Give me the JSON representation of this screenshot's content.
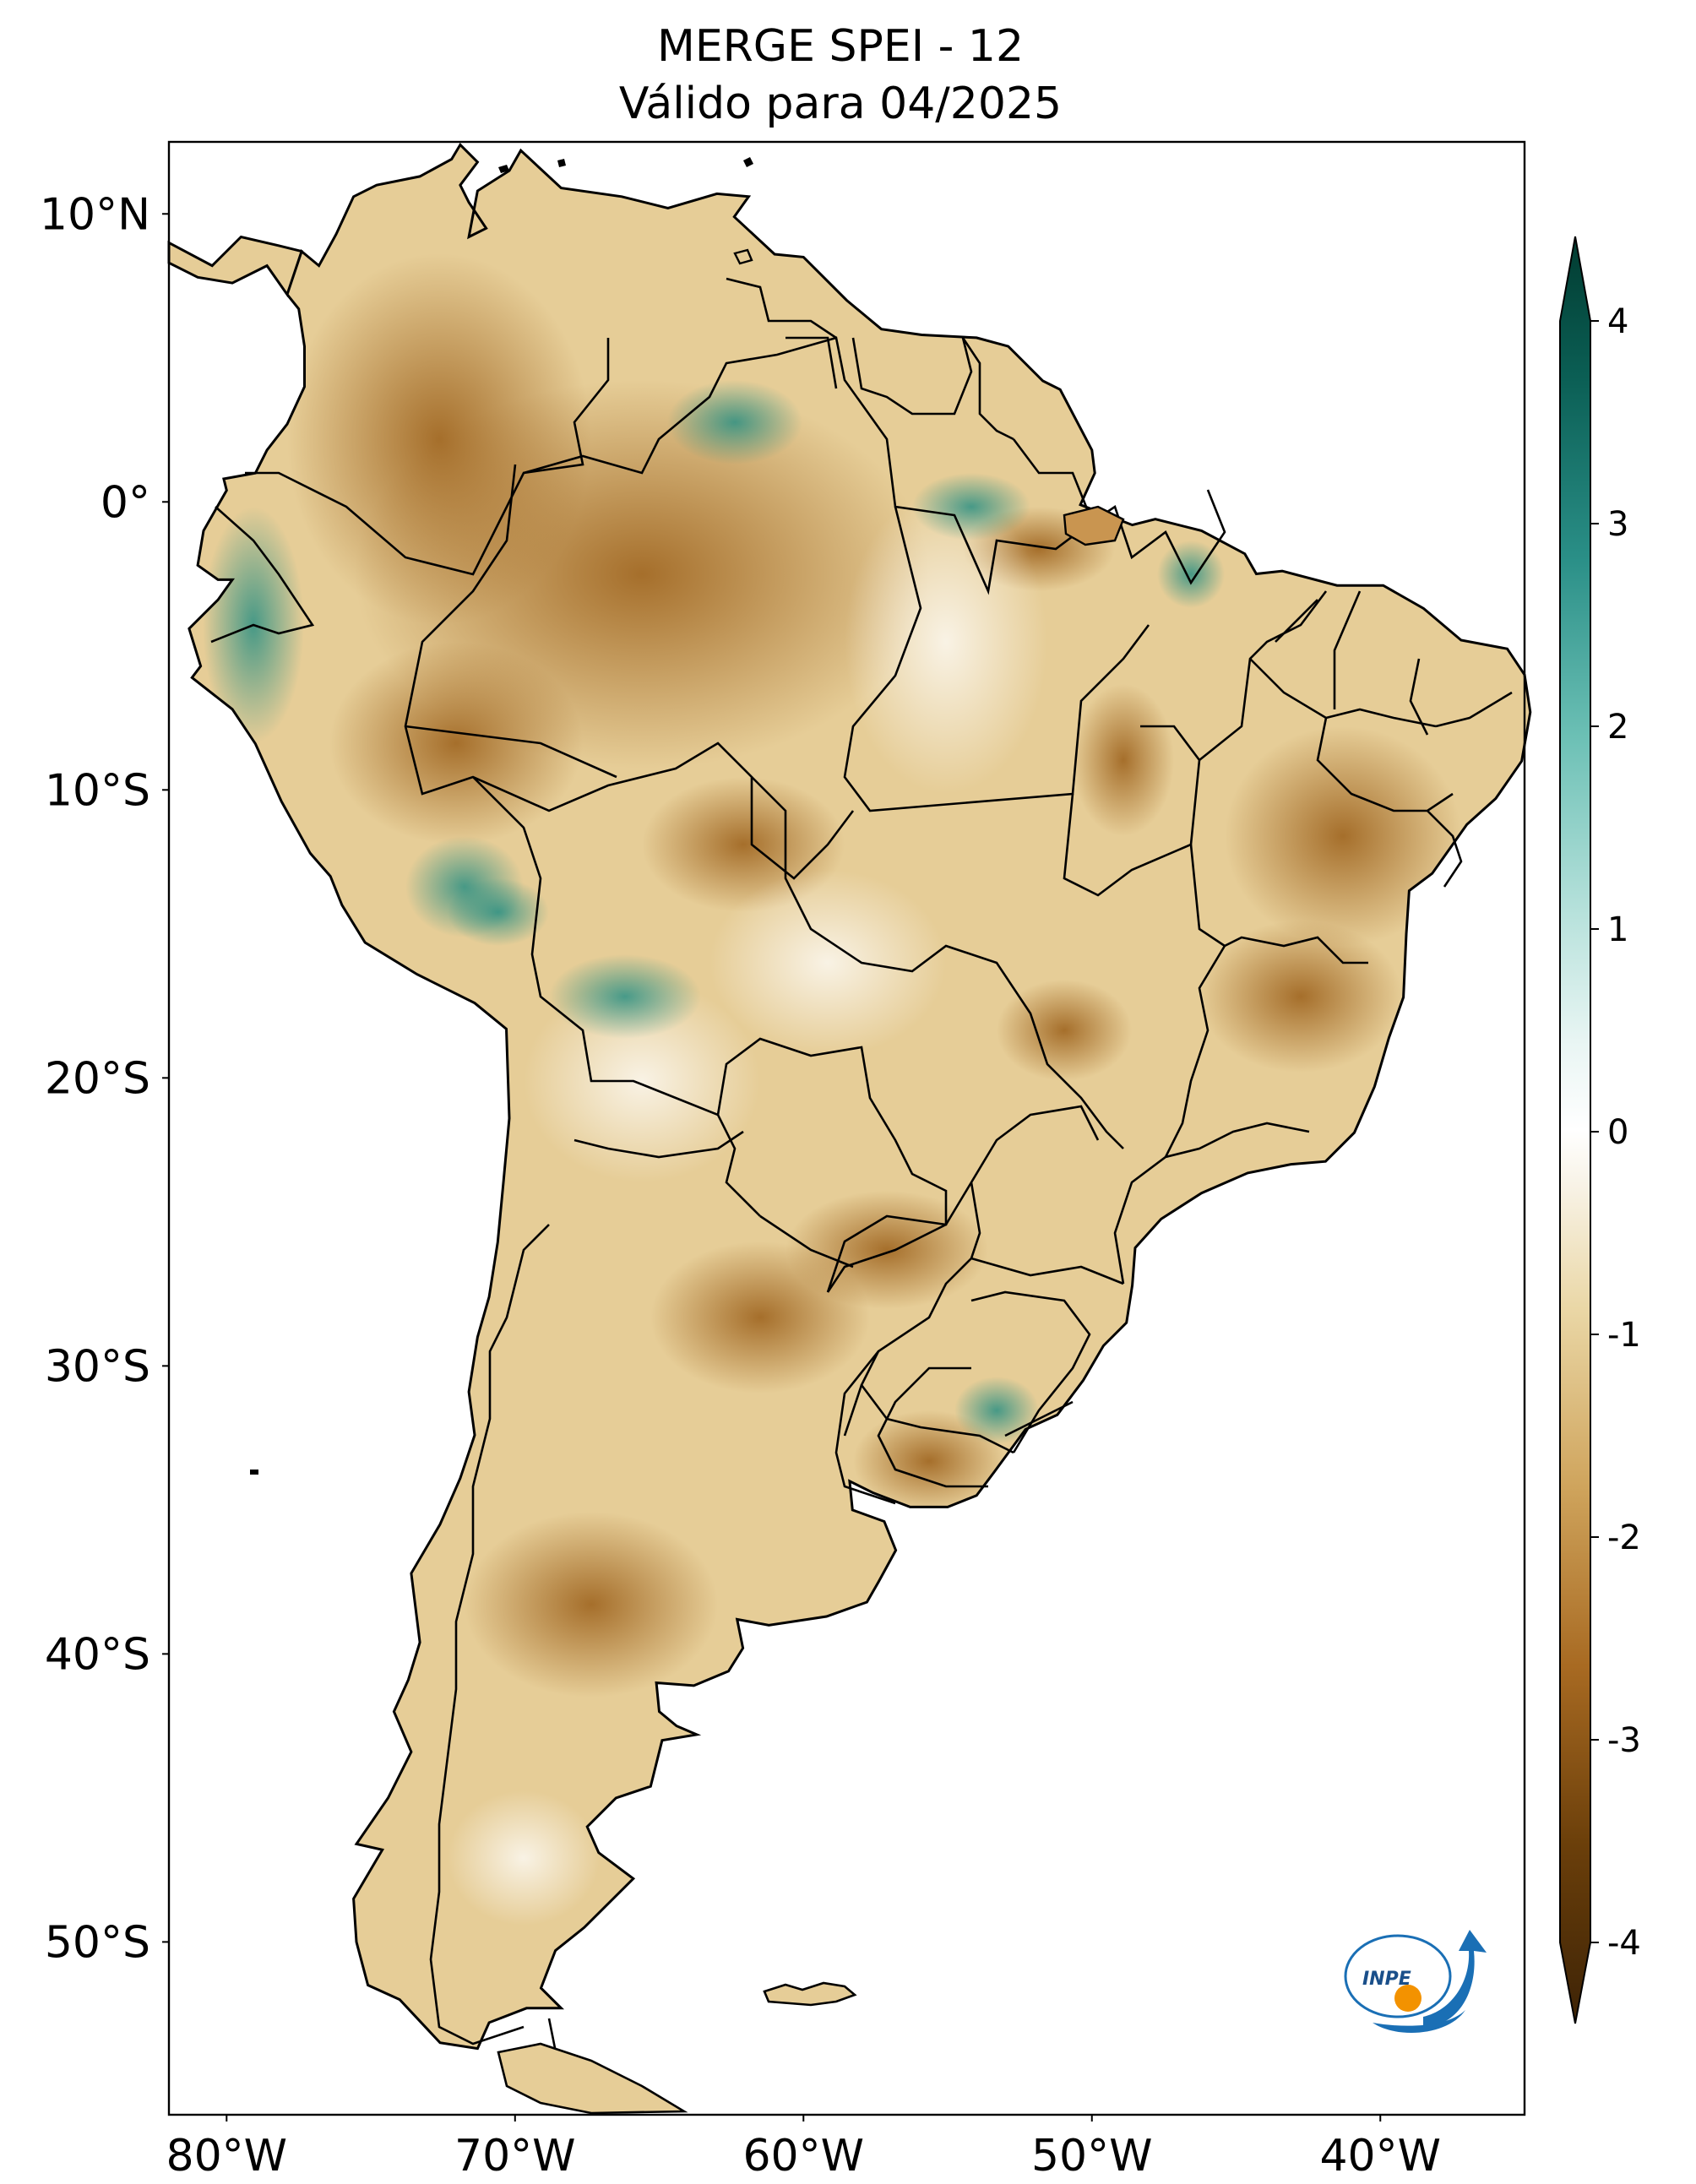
{
  "title": {
    "line1": "MERGE   SPEI - 12",
    "line2": "Válido para 04/2025"
  },
  "map": {
    "extent": {
      "lon": [
        -82,
        -35
      ],
      "lat": [
        -56,
        12.5
      ]
    },
    "lat_ticks": [
      {
        "value": 10,
        "label": "10°N"
      },
      {
        "value": 0,
        "label": "0°"
      },
      {
        "value": -10,
        "label": "10°S"
      },
      {
        "value": -20,
        "label": "20°S"
      },
      {
        "value": -30,
        "label": "30°S"
      },
      {
        "value": -40,
        "label": "40°S"
      },
      {
        "value": -50,
        "label": "50°S"
      }
    ],
    "lon_ticks": [
      {
        "value": -80,
        "label": "80°W"
      },
      {
        "value": -70,
        "label": "70°W"
      },
      {
        "value": -60,
        "label": "60°W"
      },
      {
        "value": -50,
        "label": "50°W"
      },
      {
        "value": -40,
        "label": "40°W"
      }
    ]
  },
  "colorbar": {
    "range": [
      -4,
      4
    ],
    "ticks": [
      {
        "value": 4,
        "label": "4"
      },
      {
        "value": 3,
        "label": "3"
      },
      {
        "value": 2,
        "label": "2"
      },
      {
        "value": 1,
        "label": "1"
      },
      {
        "value": 0,
        "label": "0"
      },
      {
        "value": -1,
        "label": "-1"
      },
      {
        "value": -2,
        "label": "-2"
      },
      {
        "value": -3,
        "label": "-3"
      },
      {
        "value": -4,
        "label": "-4"
      }
    ],
    "colors": {
      "dry_extreme": "#3d2306",
      "dry_strong": "#8c5212",
      "dry_moderate": "#bf8a3e",
      "dry_mild": "#dfc27d",
      "dry_light": "#f6e8c3",
      "neutral": "#f7f7f7",
      "wet_light": "#c7eae5",
      "wet_mild": "#80cdc1",
      "wet_moderate": "#35978f",
      "wet_strong": "#01665e",
      "wet_extreme": "#003c30"
    }
  },
  "logo": {
    "text": "INPE",
    "colors": {
      "ring": "#1a6fb5",
      "dot": "#f39200"
    }
  }
}
